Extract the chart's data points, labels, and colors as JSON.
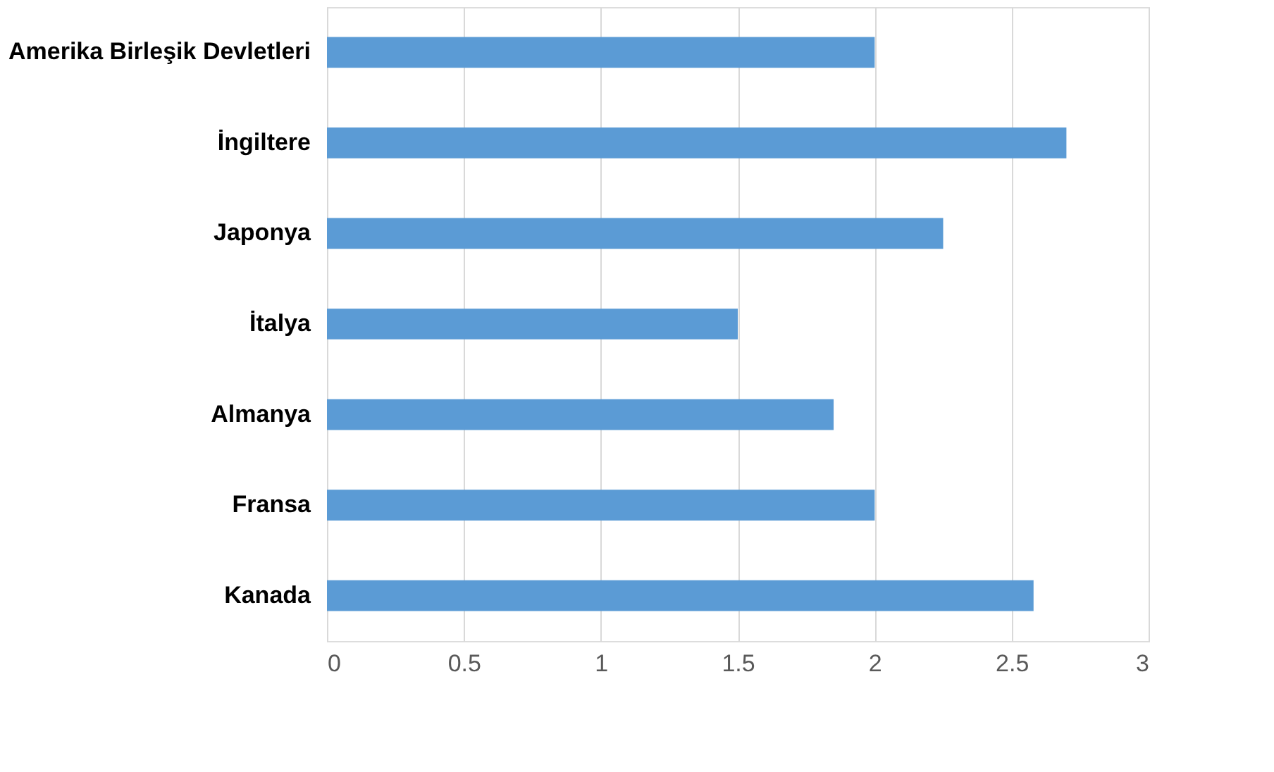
{
  "chart_data": {
    "type": "bar",
    "orientation": "horizontal",
    "categories": [
      "Amerika Birleşik Devletleri",
      "İngiltere",
      "Japonya",
      "İtalya",
      "Almanya",
      "Fransa",
      "Kanada"
    ],
    "values": [
      2.0,
      2.7,
      2.25,
      1.5,
      1.85,
      2.0,
      2.58
    ],
    "color": "#5b9bd5",
    "xlim": [
      0,
      3
    ],
    "xticks": [
      0,
      0.5,
      1,
      1.5,
      2,
      2.5,
      3
    ],
    "grid": "x"
  }
}
